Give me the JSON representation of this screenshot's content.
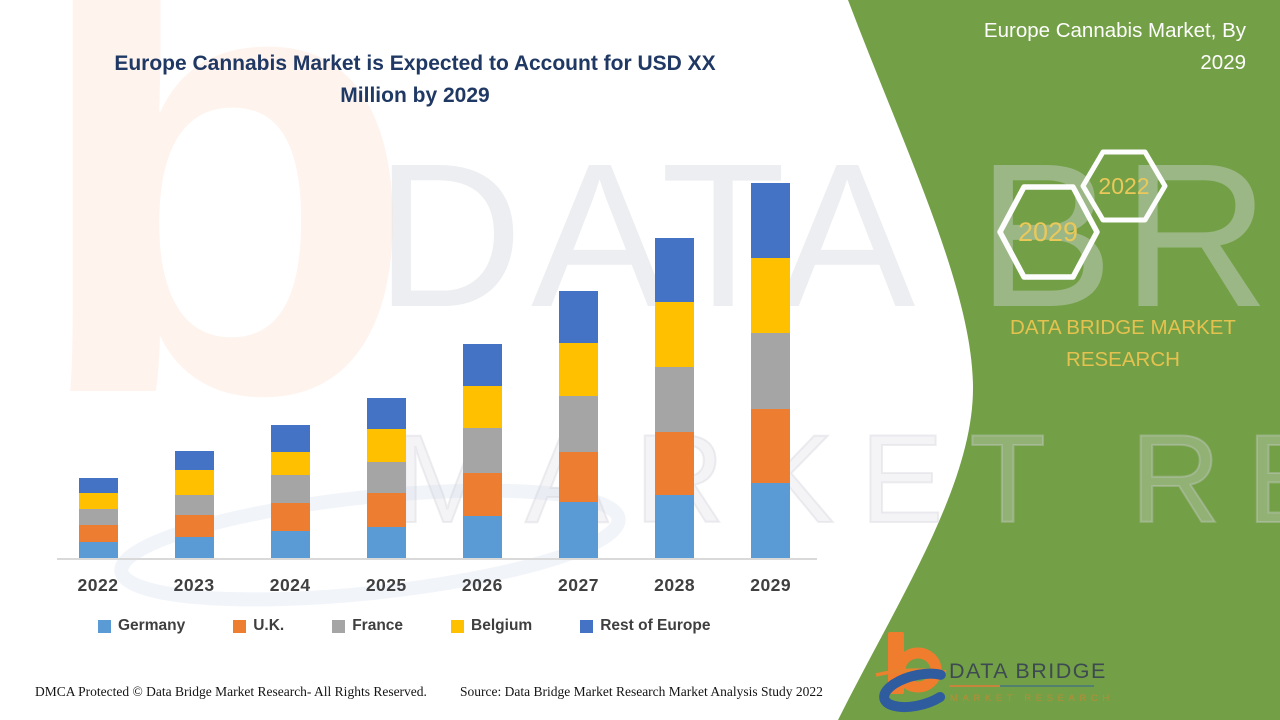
{
  "header": {
    "title": "Europe Cannabis Market is Expected to Account for USD XX Million by 2029"
  },
  "sidebar": {
    "title": "Europe Cannabis Market, By 2029",
    "hexagon_large_label": "2029",
    "hexagon_small_label": "2022",
    "brand_text": "DATA BRIDGE MARKET RESEARCH",
    "bg_color": "#73A046",
    "gold_color": "#E5C24F",
    "logo_name": "DATA BRIDGE",
    "logo_subtitle": "MARKET RESEARCH"
  },
  "watermarks": {
    "letter_b": "b",
    "line1": "DATA BRIDGE",
    "line2": "MARKET RESEARCH"
  },
  "footer": {
    "dmca": "DMCA Protected © Data Bridge Market Research- All Rights Reserved.",
    "source": "Source: Data Bridge Market Research Market Analysis Study 2022"
  },
  "chart_data": {
    "type": "bar",
    "stacked": true,
    "title": "Europe Cannabis Market is Expected to Account for USD XX Million by 2029",
    "xlabel": "",
    "ylabel": "",
    "units": "relative height units (actual market values masked as USD XX Million in source)",
    "grid": false,
    "y_axis_visible": false,
    "legend_position": "bottom",
    "categories": [
      "2022",
      "2023",
      "2024",
      "2025",
      "2026",
      "2027",
      "2028",
      "2029"
    ],
    "totals": [
      80,
      107,
      133,
      160,
      214,
      267,
      320,
      375
    ],
    "series": [
      {
        "name": "Germany",
        "color": "#5B9BD5",
        "values": [
          16,
          21,
          27,
          31,
          42,
          56,
          63,
          75
        ]
      },
      {
        "name": "U.K.",
        "color": "#ED7D31",
        "values": [
          17,
          22,
          28,
          34,
          43,
          50,
          63,
          74
        ]
      },
      {
        "name": "France",
        "color": "#A5A5A5",
        "values": [
          16,
          20,
          28,
          31,
          45,
          56,
          65,
          76
        ]
      },
      {
        "name": "Belgium",
        "color": "#FFC000",
        "values": [
          16,
          25,
          23,
          33,
          42,
          53,
          65,
          75
        ]
      },
      {
        "name": "Rest of Europe",
        "color": "#4472C4",
        "values": [
          15,
          19,
          27,
          31,
          42,
          52,
          64,
          75
        ]
      }
    ],
    "axis_color": "#D9D9D9",
    "label_color": "#404040"
  }
}
